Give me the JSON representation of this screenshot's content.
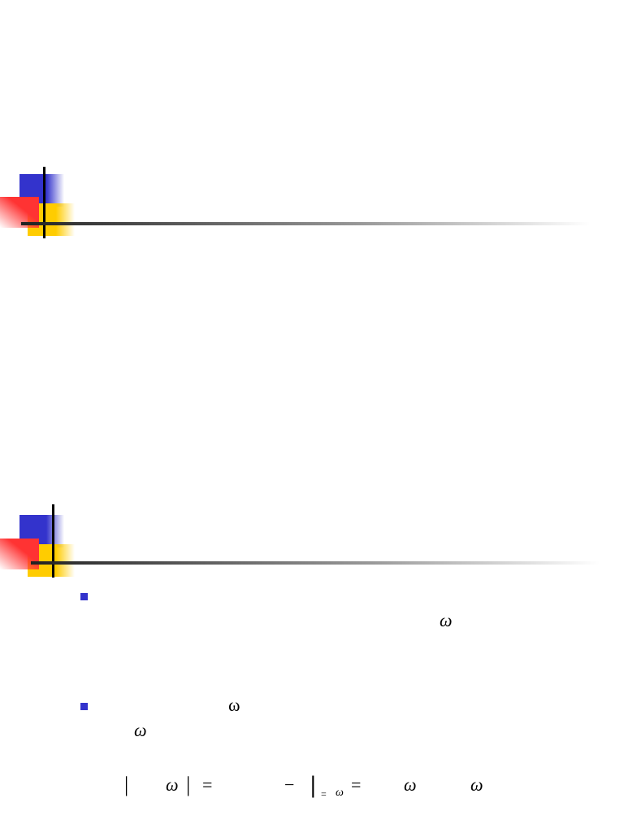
{
  "bullets": [
    {
      "symbols": [
        "ω"
      ]
    },
    {
      "symbols": [
        "ω",
        "ω"
      ]
    }
  ],
  "equation": {
    "tokens": [
      "|",
      "ω",
      "|",
      "=",
      "−",
      "|",
      "=",
      "ω",
      "=",
      "ω",
      "ω"
    ]
  }
}
